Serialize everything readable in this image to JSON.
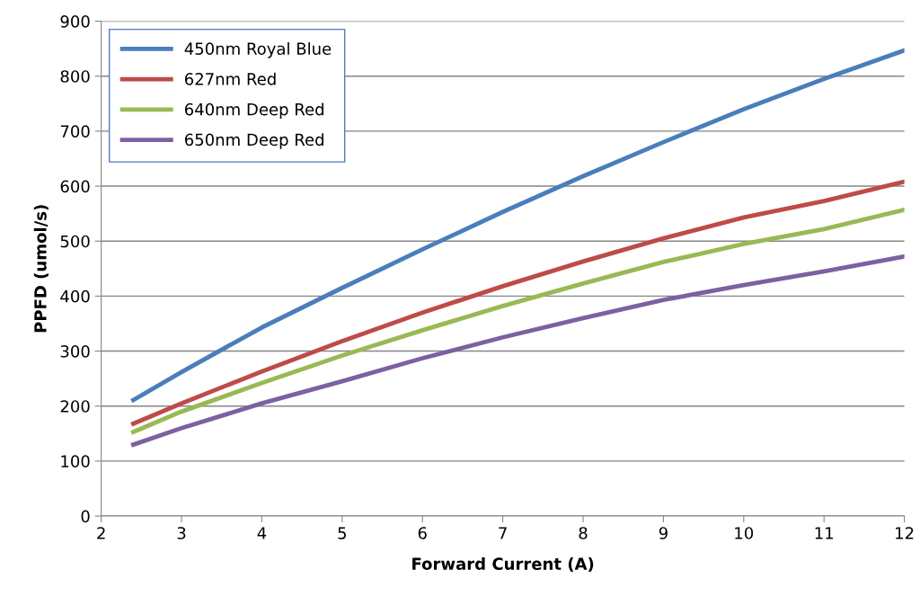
{
  "chart_data": {
    "type": "line",
    "xlabel": "Forward Current (A)",
    "ylabel": "PPFD (umol/s)",
    "xlim": [
      2,
      12
    ],
    "xticks": [
      2,
      3,
      4,
      5,
      6,
      7,
      8,
      9,
      10,
      11,
      12
    ],
    "ylim": [
      0,
      900
    ],
    "yticks": [
      0,
      100,
      200,
      300,
      400,
      500,
      600,
      700,
      800,
      900
    ],
    "grid": "y",
    "legend": "top left",
    "marker": "none",
    "line_style": "solid",
    "x": [
      2.4,
      3,
      4,
      5,
      6,
      7,
      8,
      9,
      10,
      11,
      12
    ],
    "series": [
      {
        "name": "450nm Royal Blue",
        "color": "#4a7ebb",
        "values": [
          211,
          262,
          343,
          415,
          485,
          553,
          618,
          680,
          740,
          795,
          847
        ]
      },
      {
        "name": "627nm Red",
        "color": "#be4b48",
        "values": [
          168,
          205,
          263,
          318,
          370,
          418,
          463,
          505,
          543,
          573,
          608
        ]
      },
      {
        "name": "640nm Deep Red",
        "color": "#98b954",
        "values": [
          153,
          190,
          242,
          292,
          338,
          382,
          423,
          462,
          495,
          522,
          557
        ]
      },
      {
        "name": "650nm Deep Red",
        "color": "#7d60a0",
        "values": [
          130,
          160,
          205,
          245,
          287,
          325,
          360,
          393,
          420,
          445,
          472
        ]
      }
    ]
  }
}
